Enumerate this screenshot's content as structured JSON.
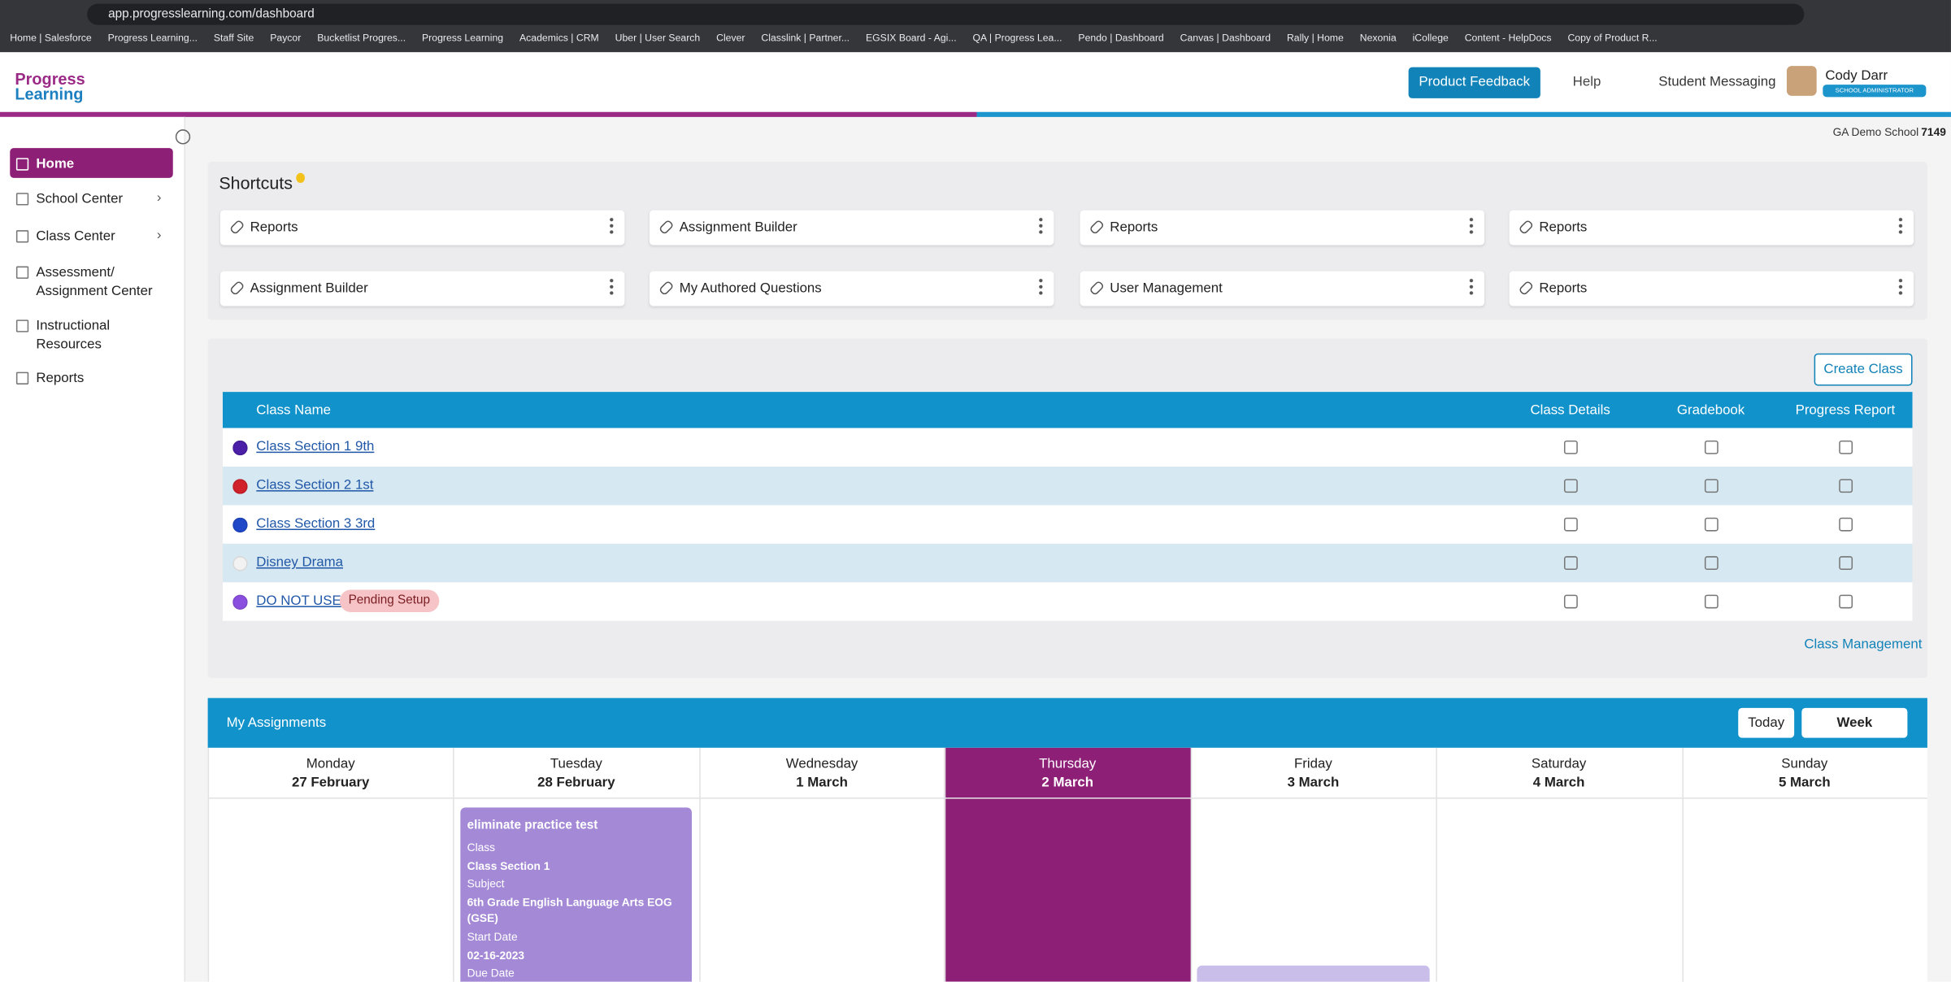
{
  "browser": {
    "url": "app.progresslearning.com/dashboard",
    "bookmarks": [
      "Home | Salesforce",
      "Progress Learning...",
      "Staff Site",
      "Paycor",
      "Bucketlist Progres...",
      "Progress Learning",
      "Academics | CRM",
      "Uber | User Search",
      "Clever",
      "Classlink | Partner...",
      "EGSIX Board - Agi...",
      "QA | Progress Lea...",
      "Pendo | Dashboard",
      "Canvas | Dashboard",
      "Rally | Home",
      "Nexonia",
      "iCollege",
      "Content - HelpDocs",
      "Copy of Product R..."
    ]
  },
  "header": {
    "logo": [
      "Progress",
      "Learning"
    ],
    "product_feedback": "Product Feedback",
    "help": "Help",
    "student_messaging": "Student Messaging",
    "user_name": "Cody Darr",
    "user_role": "SCHOOL ADMINISTRATOR",
    "school": "GA Demo School",
    "school_id": "7149"
  },
  "sidebar": {
    "items": [
      "Home",
      "School Center",
      "Class Center",
      "Assessment/ Assignment Center",
      "Instructional Resources",
      "Reports"
    ]
  },
  "shortcuts": {
    "title": "Shortcuts",
    "items": [
      "Reports",
      "Assignment Builder",
      "Reports",
      "Reports",
      "Assignment Builder",
      "My Authored Questions",
      "User Management",
      "Reports"
    ]
  },
  "classes": {
    "create_class": "Create Class",
    "columns": [
      "Class Name",
      "Class Details",
      "Gradebook",
      "Progress Report"
    ],
    "rows": [
      {
        "name": "Class Section 1 9th",
        "color": "#4b1fa8"
      },
      {
        "name": "Class Section 2 1st",
        "color": "#d0202a"
      },
      {
        "name": "Class Section 3 3rd",
        "color": "#1f48c8"
      },
      {
        "name": "Disney Drama",
        "color": "#f2f2f2"
      },
      {
        "name": "DO NOT USE",
        "color": "#8b4fe0",
        "status": "Pending Setup"
      }
    ],
    "class_management": "Class Management"
  },
  "assignments": {
    "title": "My Assignments",
    "today": "Today",
    "week": "Week",
    "days": [
      {
        "weekday": "Monday",
        "date": "27 February"
      },
      {
        "weekday": "Tuesday",
        "date": "28 February",
        "events": [
          {
            "title": "eliminate practice test",
            "lines": [
              "Class",
              "Class Section 1",
              "Subject",
              "6th Grade English Language Arts EOG (GSE)",
              "Start Date",
              "02-16-2023",
              "Due Date"
            ]
          }
        ]
      },
      {
        "weekday": "Wednesday",
        "date": "1 March"
      },
      {
        "weekday": "Thursday",
        "date": "2 March",
        "highlighted": true
      },
      {
        "weekday": "Friday",
        "date": "3 March"
      },
      {
        "weekday": "Saturday",
        "date": "4 March"
      },
      {
        "weekday": "Sunday",
        "date": "5 March"
      }
    ]
  }
}
